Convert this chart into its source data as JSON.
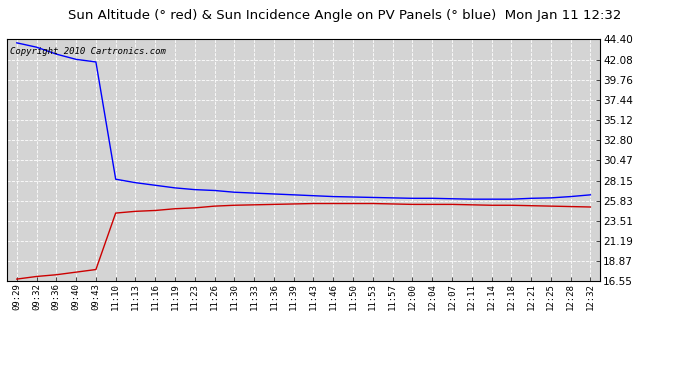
{
  "title": "Sun Altitude (° red) & Sun Incidence Angle on PV Panels (° blue)  Mon Jan 11 12:32",
  "copyright": "Copyright 2010 Cartronics.com",
  "ylim": [
    16.55,
    44.4
  ],
  "yticks": [
    16.55,
    18.87,
    21.19,
    23.51,
    25.83,
    28.15,
    30.47,
    32.8,
    35.12,
    37.44,
    39.76,
    42.08,
    44.4
  ],
  "xtick_labels": [
    "09:29",
    "09:32",
    "09:36",
    "09:40",
    "09:43",
    "11:10",
    "11:13",
    "11:16",
    "11:19",
    "11:23",
    "11:26",
    "11:30",
    "11:33",
    "11:36",
    "11:39",
    "11:43",
    "11:46",
    "11:50",
    "11:53",
    "11:57",
    "12:00",
    "12:04",
    "12:07",
    "12:11",
    "12:14",
    "12:18",
    "12:21",
    "12:25",
    "12:28",
    "12:32"
  ],
  "bg_color": "#d4d4d4",
  "fig_bg_color": "#ffffff",
  "grid_color": "#ffffff",
  "blue_line_color": "#0000ff",
  "red_line_color": "#cc0000",
  "title_fontsize": 9.5,
  "copyright_fontsize": 6.5,
  "tick_fontsize": 6.5,
  "ytick_fontsize": 7.5,
  "blue_data": [
    44.0,
    43.5,
    42.7,
    42.1,
    41.8,
    28.3,
    27.9,
    27.6,
    27.3,
    27.1,
    27.0,
    26.8,
    26.7,
    26.6,
    26.5,
    26.4,
    26.3,
    26.25,
    26.2,
    26.15,
    26.1,
    26.1,
    26.05,
    26.0,
    26.0,
    26.0,
    26.1,
    26.15,
    26.3,
    26.5
  ],
  "red_data": [
    16.8,
    17.1,
    17.3,
    17.6,
    17.9,
    24.4,
    24.6,
    24.7,
    24.9,
    25.0,
    25.2,
    25.3,
    25.35,
    25.4,
    25.45,
    25.5,
    25.5,
    25.5,
    25.5,
    25.45,
    25.4,
    25.4,
    25.4,
    25.35,
    25.3,
    25.3,
    25.25,
    25.2,
    25.15,
    25.1
  ]
}
